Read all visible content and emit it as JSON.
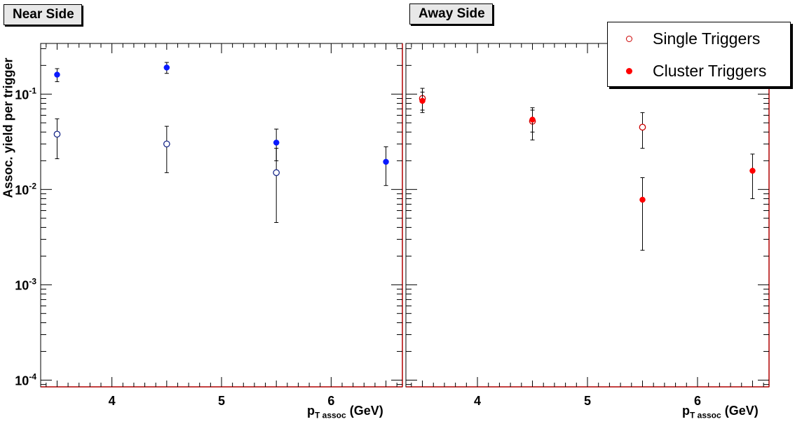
{
  "panels": [
    {
      "title": "Near Side"
    },
    {
      "title": "Away Side"
    }
  ],
  "legend": {
    "single": "Single Triggers",
    "cluster": "Cluster Triggers"
  },
  "axes": {
    "ylabel": "Assoc. yield per trigger",
    "xlabel_main": "p",
    "xlabel_sub": "T assoc",
    "xlabel_unit": " (GeV)",
    "x_ticks": [
      "4",
      "5",
      "6"
    ],
    "y_ticks": [
      "10",
      "10",
      "10",
      "10"
    ],
    "y_tick_exps": [
      "-1",
      "-2",
      "-3",
      "-4"
    ]
  },
  "colors": {
    "near_cluster": "#0a1aff",
    "away_cluster": "#ff0000",
    "near_single_edge": "#1a2a8a",
    "away_single_edge": "#cc0000",
    "frame_edge": "#b00000"
  },
  "chart_data": [
    {
      "type": "scatter",
      "title": "Near Side",
      "xlabel": "p_T assoc (GeV)",
      "ylabel": "Assoc. yield per trigger",
      "xlim": [
        3.35,
        6.65
      ],
      "ylim": [
        8.5e-05,
        0.34
      ],
      "yscale": "log",
      "series": [
        {
          "name": "Single Triggers",
          "marker": "open-circle",
          "points": [
            {
              "x": 3.5,
              "y": 0.038,
              "ylo": 0.021,
              "yhi": 0.055
            },
            {
              "x": 4.5,
              "y": 0.03,
              "ylo": 0.015,
              "yhi": 0.046
            },
            {
              "x": 5.5,
              "y": 0.015,
              "ylo": 0.0045,
              "yhi": 0.027
            }
          ]
        },
        {
          "name": "Cluster Triggers",
          "marker": "filled-circle",
          "points": [
            {
              "x": 3.5,
              "y": 0.16,
              "ylo": 0.135,
              "yhi": 0.185
            },
            {
              "x": 4.5,
              "y": 0.19,
              "ylo": 0.165,
              "yhi": 0.215
            },
            {
              "x": 5.5,
              "y": 0.031,
              "ylo": 0.02,
              "yhi": 0.043
            },
            {
              "x": 6.5,
              "y": 0.0195,
              "ylo": 0.011,
              "yhi": 0.028
            }
          ]
        }
      ]
    },
    {
      "type": "scatter",
      "title": "Away Side",
      "xlabel": "p_T assoc (GeV)",
      "xlim": [
        3.35,
        6.65
      ],
      "ylim": [
        8.5e-05,
        0.34
      ],
      "yscale": "log",
      "series": [
        {
          "name": "Single Triggers",
          "marker": "open-circle",
          "points": [
            {
              "x": 3.5,
              "y": 0.09,
              "ylo": 0.068,
              "yhi": 0.115
            },
            {
              "x": 4.5,
              "y": 0.052,
              "ylo": 0.033,
              "yhi": 0.072
            },
            {
              "x": 5.5,
              "y": 0.045,
              "ylo": 0.027,
              "yhi": 0.064
            }
          ]
        },
        {
          "name": "Cluster Triggers",
          "marker": "filled-circle",
          "points": [
            {
              "x": 3.5,
              "y": 0.085,
              "ylo": 0.064,
              "yhi": 0.105
            },
            {
              "x": 4.5,
              "y": 0.054,
              "ylo": 0.04,
              "yhi": 0.068
            },
            {
              "x": 5.5,
              "y": 0.0078,
              "ylo": 0.0023,
              "yhi": 0.0133
            },
            {
              "x": 6.5,
              "y": 0.0157,
              "ylo": 0.008,
              "yhi": 0.0235
            }
          ]
        }
      ]
    }
  ]
}
